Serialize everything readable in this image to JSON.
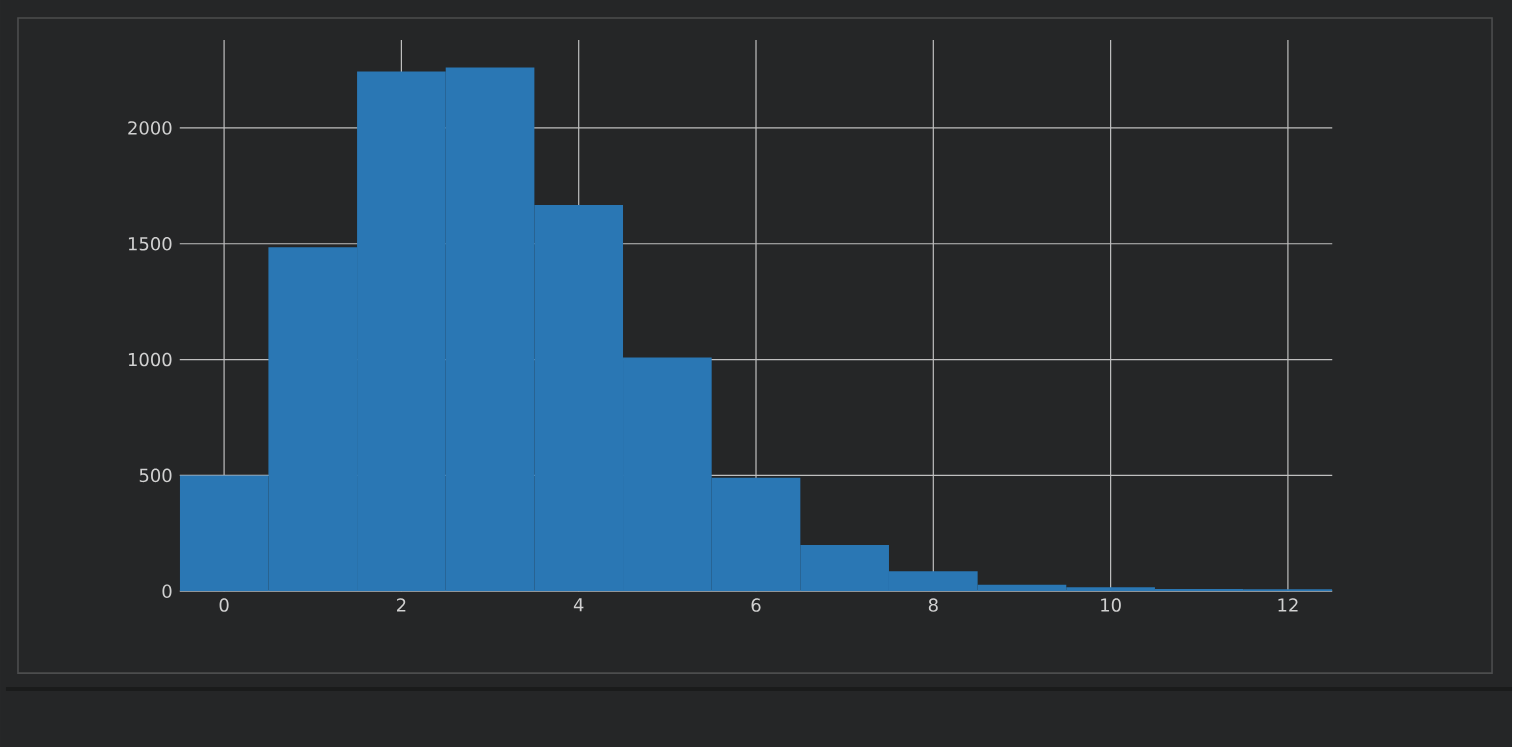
{
  "chart_data": {
    "type": "histogram",
    "bins": [
      -0.5,
      0.5,
      1.5,
      2.5,
      3.5,
      4.5,
      5.5,
      6.5,
      7.5,
      8.5,
      9.5,
      10.5,
      11.5,
      12.5
    ],
    "values": [
      500,
      1485,
      2244,
      2261,
      1667,
      1009,
      490,
      200,
      86,
      28,
      17,
      9,
      8
    ],
    "color": "#2a77b4",
    "xlim": [
      -0.5,
      12.5
    ],
    "ylim": [
      0,
      2380
    ],
    "xticks": [
      0,
      2,
      4,
      6,
      8,
      10,
      12
    ],
    "yticks": [
      0,
      500,
      1000,
      1500,
      2000
    ],
    "grid": true
  }
}
